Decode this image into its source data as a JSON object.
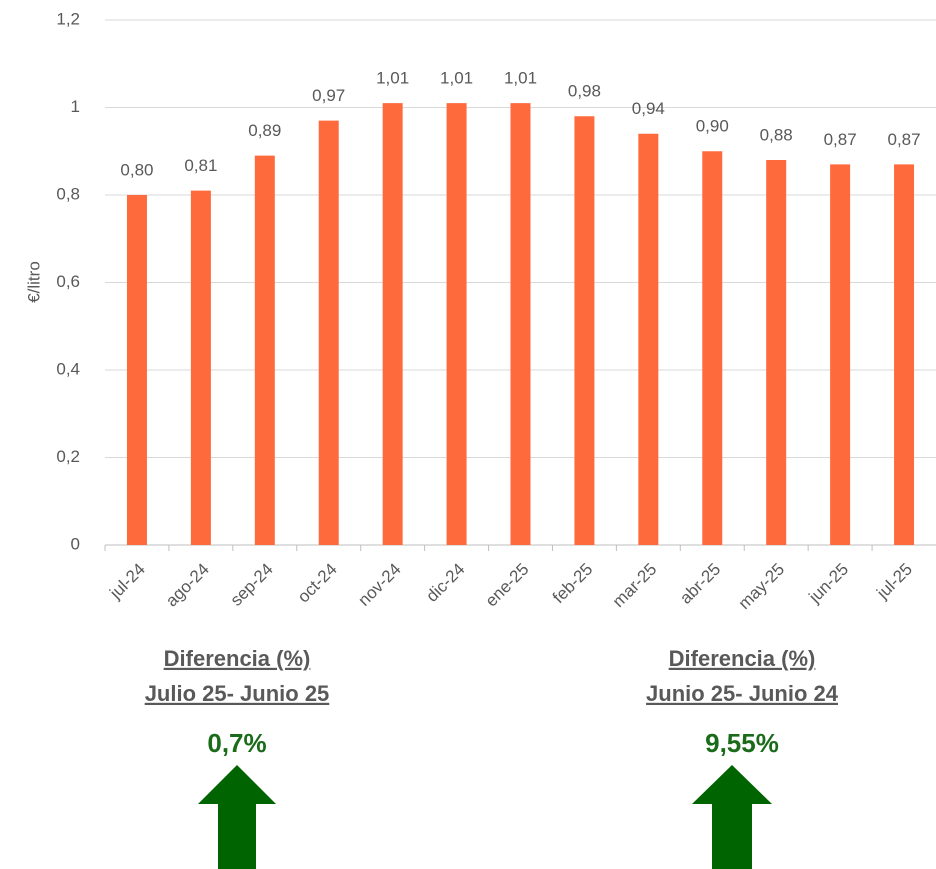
{
  "chart_data": {
    "type": "bar",
    "y_label": "€/litro",
    "categories": [
      "jul-24",
      "ago-24",
      "sep-24",
      "oct-24",
      "nov-24",
      "dic-24",
      "ene-25",
      "feb-25",
      "mar-25",
      "abr-25",
      "may-25",
      "jun-25",
      "jul-25"
    ],
    "values": [
      0.8,
      0.81,
      0.89,
      0.97,
      1.01,
      1.01,
      1.01,
      0.98,
      0.94,
      0.9,
      0.88,
      0.87,
      0.87
    ],
    "value_labels": [
      "0,80",
      "0,81",
      "0,89",
      "0,97",
      "1,01",
      "1,01",
      "1,01",
      "0,98",
      "0,94",
      "0,90",
      "0,88",
      "0,87",
      "0,87"
    ],
    "color": "#ff6a3d",
    "ylim": [
      0,
      1.2
    ],
    "yticks": [
      0,
      {
        "value": 0.2,
        "label": "0,2"
      },
      {
        "value": 0.4,
        "label": "0,4"
      },
      {
        "value": 0.6,
        "label": "0,6"
      },
      {
        "value": 0.8,
        "label": "0,8"
      },
      1,
      {
        "value": 1.2,
        "label": "1,2"
      }
    ],
    "grid": true,
    "annotations": [
      {
        "title": "Diferencia (%)",
        "subtitle": "Julio 25- Junio 25",
        "value": "0,7%"
      },
      {
        "title": "Diferencia (%)",
        "subtitle": "Junio 25- Junio 24",
        "value": "9,55%"
      }
    ]
  }
}
